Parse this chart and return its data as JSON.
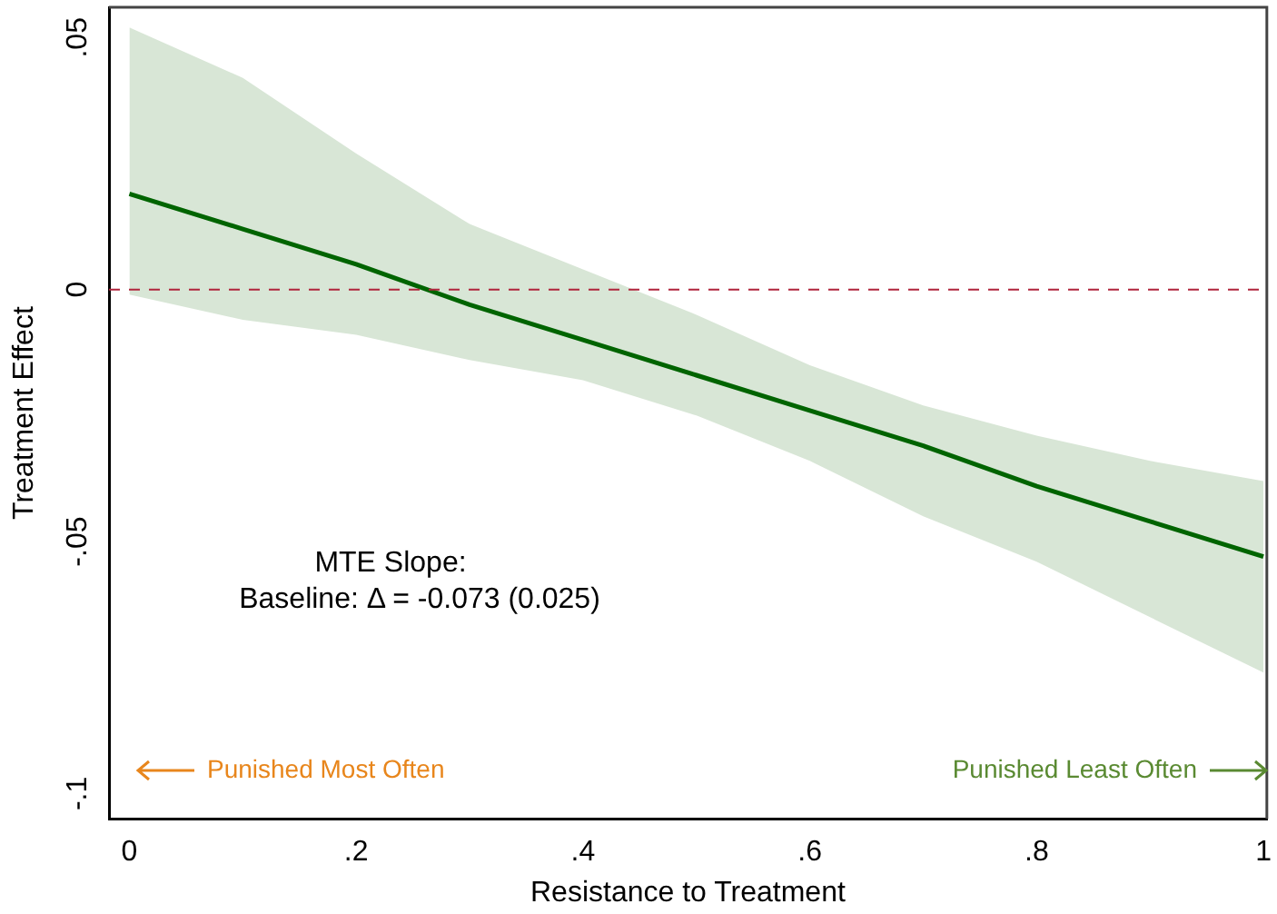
{
  "chart_data": {
    "type": "line",
    "xlabel": "Resistance to Treatment",
    "ylabel": "Treatment Effect",
    "x": [
      0,
      0.1,
      0.2,
      0.3,
      0.4,
      0.5,
      0.6,
      0.7,
      0.8,
      0.9,
      1
    ],
    "series": [
      {
        "color": "#006400",
        "values": [
          0.019,
          0.012,
          0.005,
          -0.003,
          -0.01,
          -0.017,
          -0.024,
          -0.031,
          -0.039,
          -0.046,
          -0.053
        ],
        "upper": [
          0.052,
          0.042,
          0.027,
          0.013,
          0.004,
          -0.005,
          -0.015,
          -0.023,
          -0.029,
          -0.034,
          -0.038
        ],
        "lower": [
          -0.001,
          -0.006,
          -0.009,
          -0.014,
          -0.018,
          -0.025,
          -0.034,
          -0.045,
          -0.054,
          -0.065,
          -0.076
        ]
      }
    ],
    "xlim": [
      -0.018,
      1.003
    ],
    "ylim": [
      -0.105,
      0.056
    ],
    "xticks": [
      0,
      {
        "value": 0.2,
        "label": ".2"
      },
      {
        "value": 0.4,
        "label": ".4"
      },
      {
        "value": 0.6,
        "label": ".6"
      },
      {
        "value": 0.8,
        "label": ".8"
      },
      1
    ],
    "yticks": [
      {
        "value": -0.1,
        "label": "-.1"
      },
      {
        "value": -0.05,
        "label": "-.05"
      },
      0,
      {
        "value": 0.05,
        "label": ".05"
      }
    ],
    "ref_lines": [
      {
        "axis": "y",
        "value": 0,
        "color": "#b0243c",
        "line_style": "dashed"
      }
    ],
    "annotations": [
      "MTE Slope:",
      "Baseline: Δ = -0.073 (0.025)",
      "Punished Most Often",
      "Punished Least Often"
    ],
    "grid": false,
    "legend": false,
    "marker": "none",
    "line_style": "solid"
  }
}
